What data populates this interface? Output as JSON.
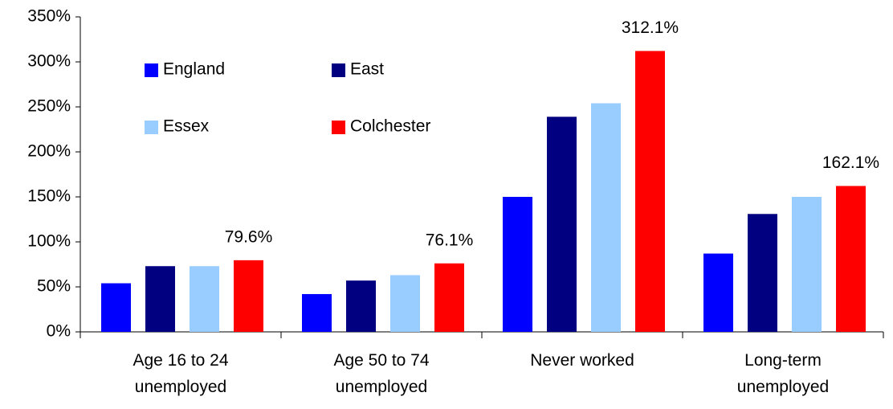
{
  "chart_data": {
    "type": "bar",
    "categories": [
      "Age 16 to 24\nunemployed",
      "Age 50 to 74\nunemployed",
      "Never worked",
      "Long-term\nunemployed"
    ],
    "series": [
      {
        "name": "England",
        "color": "#0000ff",
        "values": [
          54,
          42,
          150,
          87
        ]
      },
      {
        "name": "East",
        "color": "#000080",
        "values": [
          73,
          57,
          239,
          131
        ]
      },
      {
        "name": "Essex",
        "color": "#99ccff",
        "values": [
          73,
          63,
          254,
          150
        ]
      },
      {
        "name": "Colchester",
        "color": "#ff0000",
        "values": [
          79.6,
          76.1,
          312.1,
          162.1
        ],
        "value_labels": [
          "79.6%",
          "76.1%",
          "312.1%",
          "162.1%"
        ]
      }
    ],
    "ylim": [
      0,
      350
    ],
    "yticks": [
      {
        "value": 0,
        "label": "0%"
      },
      {
        "value": 50,
        "label": "50%"
      },
      {
        "value": 100,
        "label": "100%"
      },
      {
        "value": 150,
        "label": "150%"
      },
      {
        "value": 200,
        "label": "200%"
      },
      {
        "value": 250,
        "label": "250%"
      },
      {
        "value": 300,
        "label": "300%"
      },
      {
        "value": 350,
        "label": "350%"
      }
    ],
    "grid": false,
    "legend": "upper left"
  }
}
